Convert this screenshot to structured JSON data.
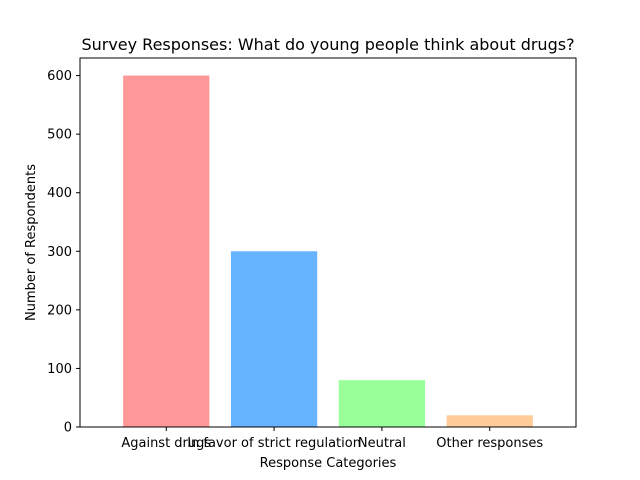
{
  "chart_data": {
    "type": "bar",
    "title": "Survey Responses: What do young people think about drugs?",
    "xlabel": "Response Categories",
    "ylabel": "Number of Respondents",
    "categories": [
      "Against drugs",
      "In favor of strict regulation",
      "Neutral",
      "Other responses"
    ],
    "values": [
      600,
      300,
      80,
      20
    ],
    "colors": [
      "#ff9999",
      "#66b3ff",
      "#99ff99",
      "#ffcc99"
    ],
    "ylim": [
      0,
      630
    ],
    "yticks": [
      0,
      100,
      200,
      300,
      400,
      500,
      600
    ],
    "grid": false,
    "legend": "none"
  }
}
